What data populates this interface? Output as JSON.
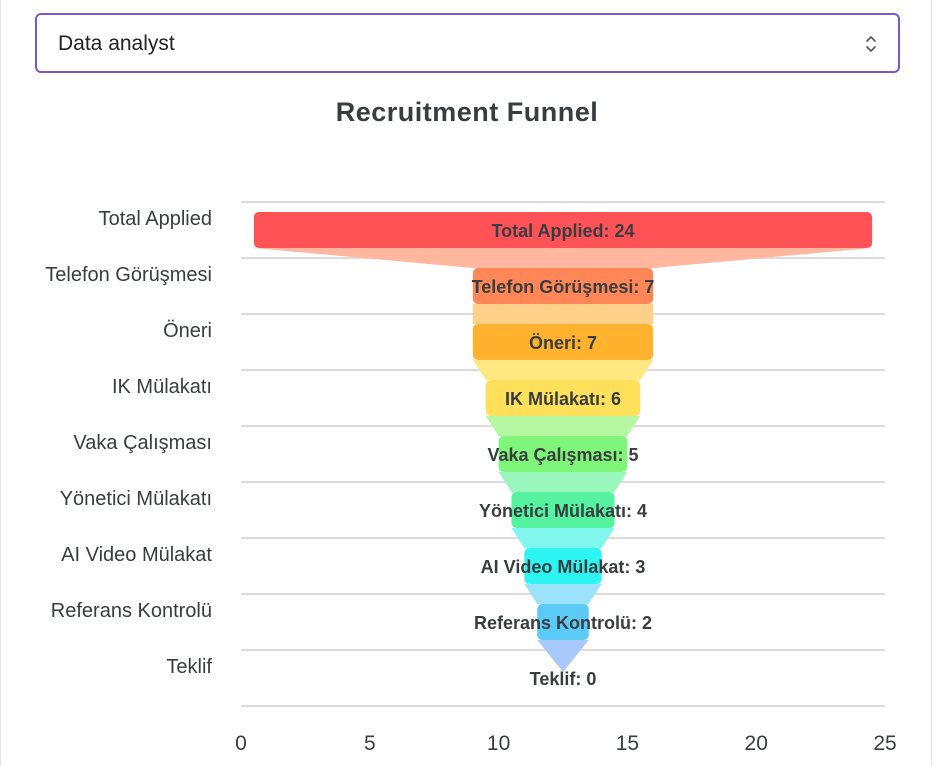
{
  "selector": {
    "value": "Data analyst"
  },
  "chart_data": {
    "type": "bar",
    "subtype": "funnel",
    "title": "Recruitment Funnel",
    "categories": [
      "Total Applied",
      "Telefon Görüşmesi",
      "Öneri",
      "IK Mülakatı",
      "Vaka Çalışması",
      "Yönetici Mülakatı",
      "AI Video Mülakat",
      "Referans Kontrolü",
      "Teklif"
    ],
    "values": [
      24,
      7,
      7,
      6,
      5,
      4,
      3,
      2,
      0
    ],
    "data_labels": [
      "Total Applied: 24",
      "Telefon Görüşmesi: 7",
      "Öneri: 7",
      "IK Mülakatı: 6",
      "Vaka Çalışması: 5",
      "Yönetici Mülakatı: 4",
      "AI Video Mülakat: 3",
      "Referans Kontrolü: 2",
      "Teklif: 0"
    ],
    "xlim": [
      0,
      25
    ],
    "xticks": [
      0,
      5,
      10,
      15,
      20,
      25
    ],
    "grid": true,
    "bar_colors": [
      "#ff5257",
      "#ff8657",
      "#ffb22e",
      "#ffe05a",
      "#7ff57a",
      "#55f29f",
      "#2df5f2",
      "#5ccaf7",
      "#8fb6f7"
    ],
    "connector_colors": [
      "#ffb79f",
      "#ffd08a",
      "#ffe882",
      "#b6f7a2",
      "#99f7bd",
      "#7ff7ee",
      "#9be2fa",
      "#a9c9fa"
    ]
  }
}
